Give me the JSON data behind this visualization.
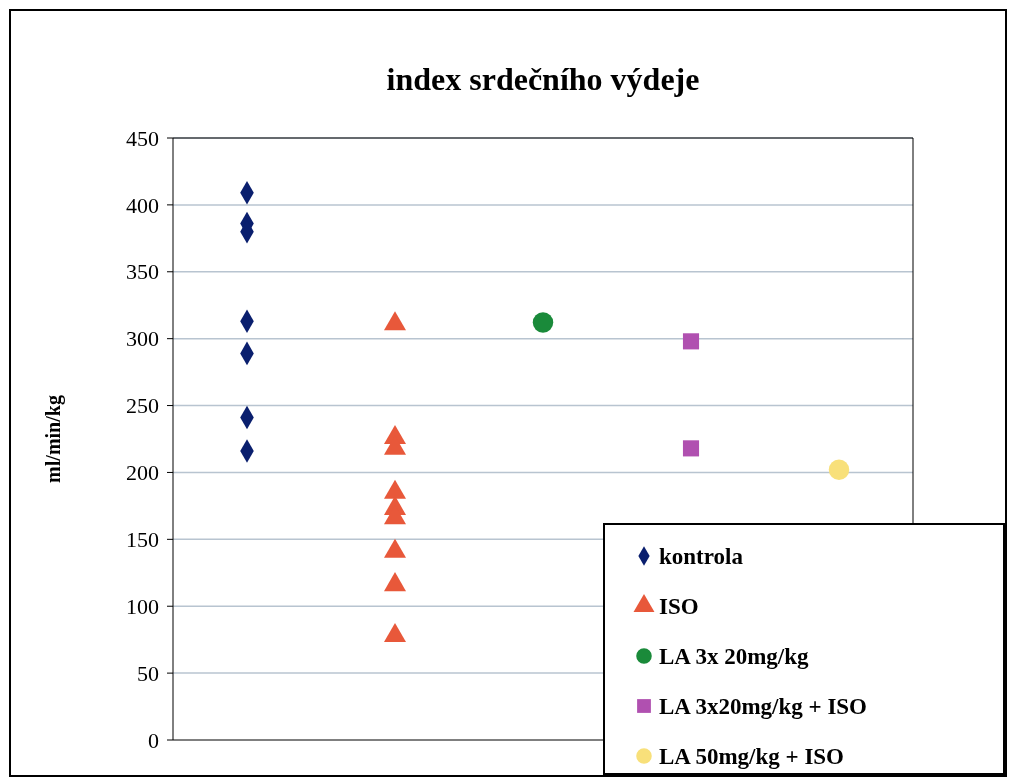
{
  "chart_data": {
    "type": "scatter",
    "title": "index srdečního výdeje",
    "ylabel": "ml/min/kg",
    "categories": [
      null,
      null,
      null,
      null,
      null
    ],
    "ylim": [
      0,
      450
    ],
    "yticks": [
      0,
      50,
      100,
      150,
      200,
      250,
      300,
      350,
      400,
      450
    ],
    "grid": "y",
    "legend": "bottom right",
    "series": [
      {
        "name": "kontrola",
        "color": "#0a1f6e",
        "marker": "diamond",
        "values": [
          409,
          null,
          null,
          null,
          null
        ]
      },
      {
        "color": "#0a1f6e",
        "marker": "diamond",
        "values": [
          386,
          null,
          null,
          null,
          null
        ]
      },
      {
        "color": "#0a1f6e",
        "marker": "diamond",
        "values": [
          380,
          null,
          null,
          null,
          null
        ]
      },
      {
        "color": "#0a1f6e",
        "marker": "diamond",
        "values": [
          313,
          null,
          null,
          null,
          null
        ]
      },
      {
        "color": "#0a1f6e",
        "marker": "diamond",
        "values": [
          289,
          null,
          null,
          null,
          null
        ]
      },
      {
        "color": "#0a1f6e",
        "marker": "diamond",
        "values": [
          241,
          null,
          null,
          null,
          null
        ]
      },
      {
        "color": "#0a1f6e",
        "marker": "diamond",
        "values": [
          216,
          null,
          null,
          null,
          null
        ]
      },
      {
        "name": "ISO",
        "color": "#e8583a",
        "marker": "triangle",
        "values": [
          null,
          311,
          null,
          null,
          null
        ]
      },
      {
        "color": "#e8583a",
        "marker": "triangle",
        "values": [
          null,
          226,
          null,
          null,
          null
        ]
      },
      {
        "color": "#e8583a",
        "marker": "triangle",
        "values": [
          null,
          218,
          null,
          null,
          null
        ]
      },
      {
        "color": "#e8583a",
        "marker": "triangle",
        "values": [
          null,
          185,
          null,
          null,
          null
        ]
      },
      {
        "color": "#e8583a",
        "marker": "triangle",
        "values": [
          null,
          173,
          null,
          null,
          null
        ]
      },
      {
        "color": "#e8583a",
        "marker": "triangle",
        "values": [
          null,
          166,
          null,
          null,
          null
        ]
      },
      {
        "color": "#e8583a",
        "marker": "triangle",
        "values": [
          null,
          141,
          null,
          null,
          null
        ]
      },
      {
        "color": "#e8583a",
        "marker": "triangle",
        "values": [
          null,
          116,
          null,
          null,
          null
        ]
      },
      {
        "color": "#e8583a",
        "marker": "triangle",
        "values": [
          null,
          78,
          null,
          null,
          null
        ]
      },
      {
        "name": "LA 3x 20mg/kg",
        "color": "#1a8a3a",
        "marker": "circle",
        "values": [
          null,
          null,
          312,
          null,
          null
        ]
      },
      {
        "name": "LA 3x20mg/kg + ISO",
        "color": "#b050b0",
        "marker": "square",
        "values": [
          null,
          null,
          null,
          298,
          null
        ]
      },
      {
        "color": "#b050b0",
        "marker": "square",
        "values": [
          null,
          null,
          null,
          218,
          null
        ]
      },
      {
        "name": "LA 50mg/kg + ISO",
        "color": "#f8e07a",
        "marker": "circle",
        "values": [
          null,
          null,
          null,
          null,
          202
        ]
      }
    ]
  }
}
